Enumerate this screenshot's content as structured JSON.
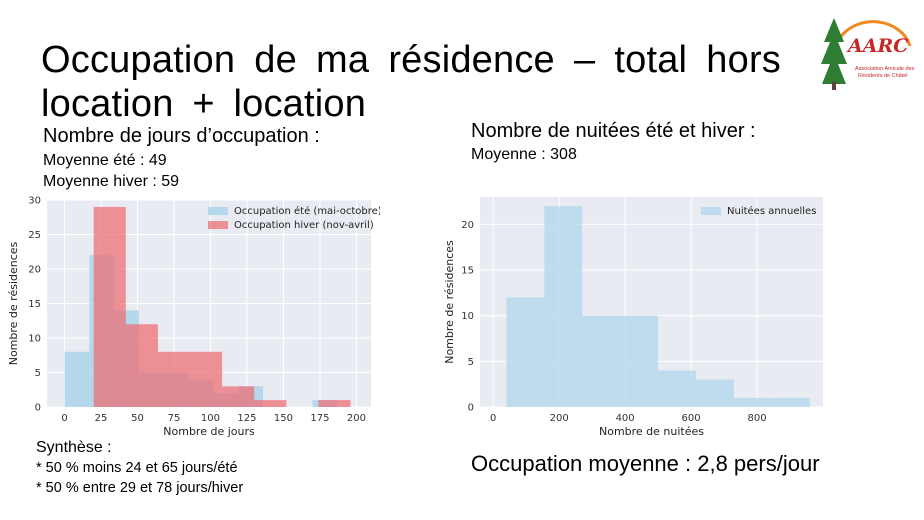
{
  "slide": {
    "title_line1": "Occupation de ma résidence – total hors",
    "title_line2": "location + location",
    "left_heading": "Nombre de jours d’occupation :",
    "left_line1": "Moyenne été : 49",
    "left_line2": "Moyenne hiver : 59",
    "right_heading": "Nombre de nuitées été et hiver :",
    "right_line1": "Moyenne : 308",
    "synthese_title": "Synthèse :",
    "synthese_line1": "* 50 % moins 24 et 65  jours/été",
    "synthese_line2": "* 50 % entre 29 et 78 jours/hiver",
    "occupation": "Occupation moyenne : 2,8 pers/jour"
  },
  "logo": {
    "text": "AARC",
    "subtitle_line1": "Association Amicale des",
    "subtitle_line2": "Résidents de Châtel",
    "colors": {
      "arc": "#f08a1c",
      "tree": "#2e7d32",
      "text": "#c62828",
      "sub": "#c62828"
    }
  },
  "chart_data": [
    {
      "type": "histogram",
      "xlabel": "Nombre de jours",
      "ylabel": "Nombre de résidences",
      "xlim": [
        -12,
        210
      ],
      "ylim": [
        0,
        30
      ],
      "xticks": [
        0,
        25,
        50,
        75,
        100,
        125,
        150,
        175,
        200
      ],
      "yticks": [
        0,
        5,
        10,
        15,
        20,
        25,
        30
      ],
      "legend_position": "top-right",
      "grid": true,
      "series": [
        {
          "name": "Occupation été (mai-octobre)",
          "color": "#a6d2ea",
          "bins": [
            {
              "x0": 0,
              "x1": 17,
              "count": 8
            },
            {
              "x0": 17,
              "x1": 34,
              "count": 22
            },
            {
              "x0": 34,
              "x1": 51,
              "count": 14
            },
            {
              "x0": 51,
              "x1": 68,
              "count": 5
            },
            {
              "x0": 68,
              "x1": 85,
              "count": 5
            },
            {
              "x0": 85,
              "x1": 102,
              "count": 4
            },
            {
              "x0": 102,
              "x1": 119,
              "count": 2
            },
            {
              "x0": 119,
              "x1": 136,
              "count": 3
            },
            {
              "x0": 136,
              "x1": 153,
              "count": 0
            },
            {
              "x0": 153,
              "x1": 170,
              "count": 0
            },
            {
              "x0": 170,
              "x1": 187,
              "count": 1
            }
          ]
        },
        {
          "name": "Occupation hiver (nov-avril)",
          "color": "#ee6a6f",
          "bins": [
            {
              "x0": 20,
              "x1": 42,
              "count": 29
            },
            {
              "x0": 42,
              "x1": 64,
              "count": 12
            },
            {
              "x0": 64,
              "x1": 86,
              "count": 8
            },
            {
              "x0": 86,
              "x1": 108,
              "count": 8
            },
            {
              "x0": 108,
              "x1": 130,
              "count": 3
            },
            {
              "x0": 130,
              "x1": 152,
              "count": 1
            },
            {
              "x0": 152,
              "x1": 174,
              "count": 0
            },
            {
              "x0": 174,
              "x1": 196,
              "count": 1
            }
          ]
        }
      ]
    },
    {
      "type": "histogram",
      "xlabel": "Nombre de nuitées",
      "ylabel": "Nombre de résidences",
      "xlim": [
        -40,
        1000
      ],
      "ylim": [
        0,
        23
      ],
      "xticks": [
        0,
        200,
        400,
        600,
        800
      ],
      "yticks": [
        0,
        5,
        10,
        15,
        20
      ],
      "legend_position": "top-right",
      "grid": true,
      "series": [
        {
          "name": "Nuitées annuelles",
          "color": "#b4d8ec",
          "bins": [
            {
              "x0": 40,
              "x1": 155,
              "count": 12
            },
            {
              "x0": 155,
              "x1": 270,
              "count": 22
            },
            {
              "x0": 270,
              "x1": 385,
              "count": 10
            },
            {
              "x0": 385,
              "x1": 500,
              "count": 10
            },
            {
              "x0": 500,
              "x1": 615,
              "count": 4
            },
            {
              "x0": 615,
              "x1": 730,
              "count": 3
            },
            {
              "x0": 730,
              "x1": 845,
              "count": 1
            },
            {
              "x0": 845,
              "x1": 960,
              "count": 1
            }
          ]
        }
      ]
    }
  ]
}
